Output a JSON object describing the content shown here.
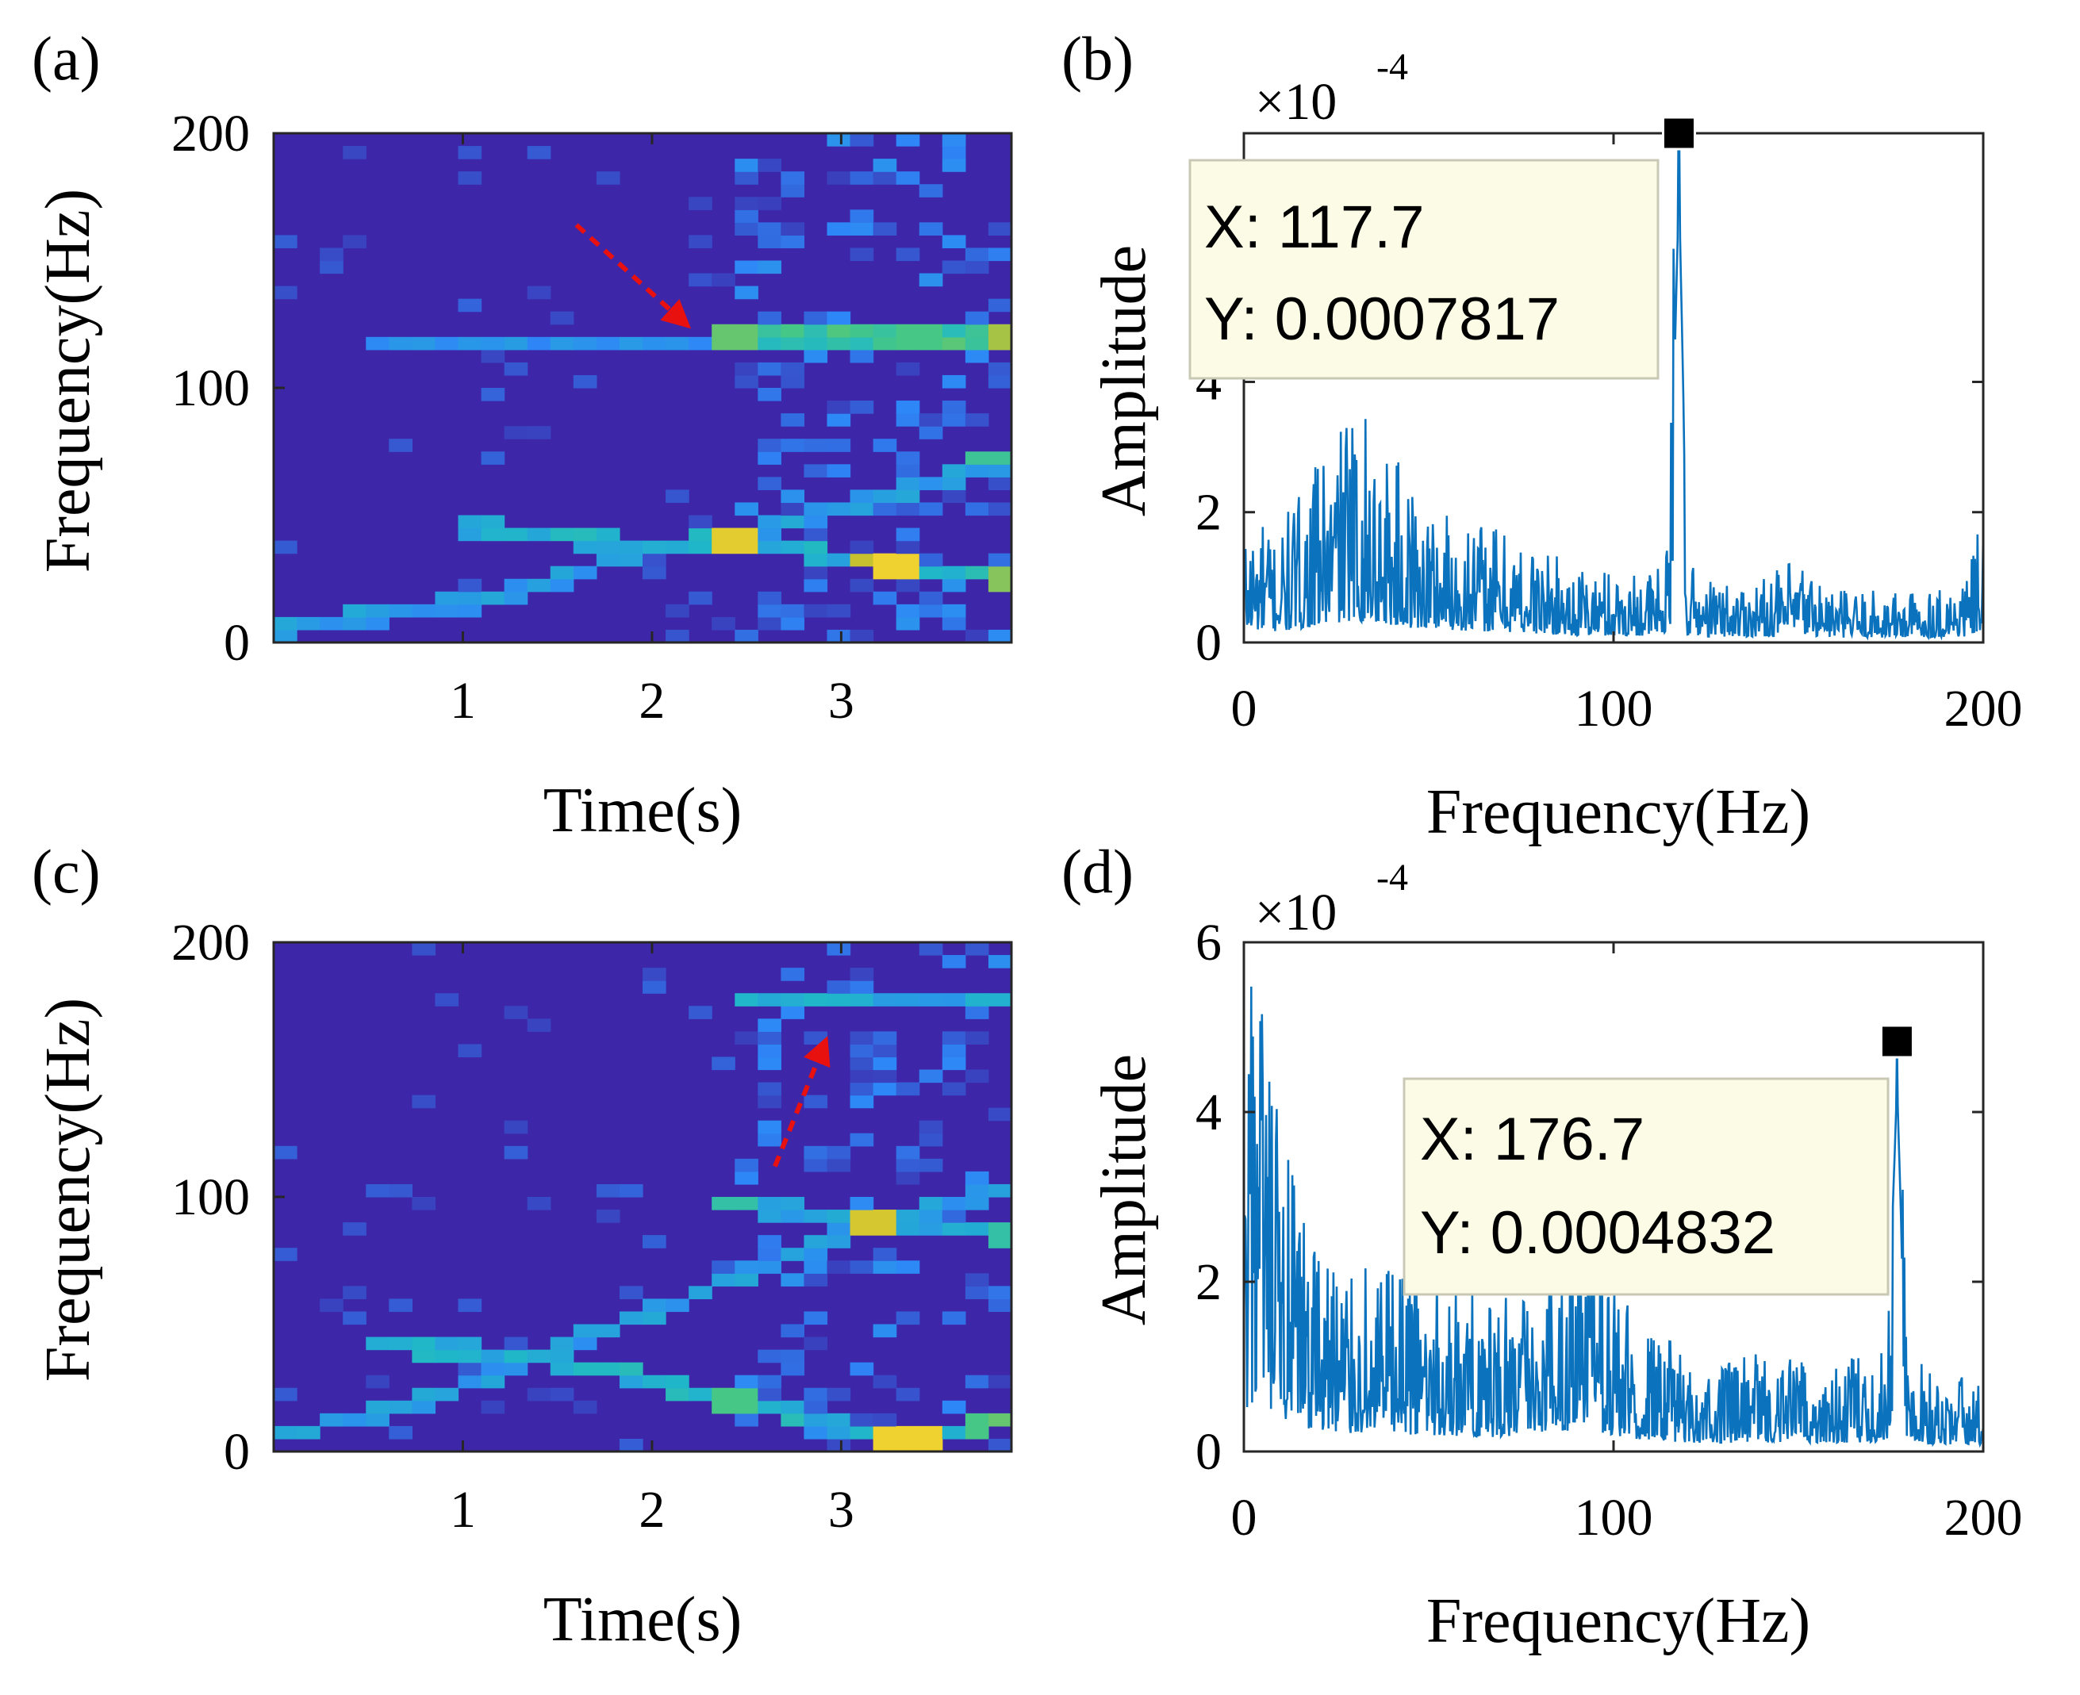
{
  "figure_title": "",
  "chart_data": [
    {
      "panel": "(a)",
      "type": "heatmap",
      "title": "",
      "xlabel": "Time(s)",
      "ylabel": "Frequency(Hz)",
      "xlim": [
        0,
        3.9
      ],
      "ylim": [
        0,
        200
      ],
      "xticks": [
        1,
        2,
        3
      ],
      "yticks": [
        0,
        100,
        200
      ],
      "time_bins": 32,
      "freq_bins": 40,
      "tracks": [
        {
          "name": "rising chirp",
          "points": [
            [
              0,
              5
            ],
            [
              1,
              15
            ],
            [
              2,
              36
            ],
            [
              2.5,
              42
            ],
            [
              3,
              52
            ],
            [
              3.9,
              72
            ]
          ],
          "intensity": 0.3
        },
        {
          "name": "falling branch",
          "points": [
            [
              1,
              46
            ],
            [
              2,
              38
            ],
            [
              2.4,
              40
            ],
            [
              3,
              33
            ],
            [
              3.3,
              29
            ],
            [
              3.9,
              25
            ]
          ],
          "intensity": 0.4
        },
        {
          "name": "~118 Hz fault line",
          "points": [
            [
              0.5,
              118
            ],
            [
              2.3,
              118
            ],
            [
              2.5,
              120
            ],
            [
              3.9,
              120
            ]
          ],
          "intensity": 0.25
        },
        {
          "name": "bright 117 Hz segment",
          "points": [
            [
              2.45,
              120
            ],
            [
              3.9,
              120
            ]
          ],
          "intensity": 0.55
        }
      ],
      "hotspots": [
        [
          2.45,
          40,
          0.9
        ],
        [
          2.5,
          38,
          0.85
        ],
        [
          3.1,
          33,
          0.8
        ],
        [
          3.3,
          30,
          0.95
        ],
        [
          3.9,
          119,
          0.75
        ],
        [
          3.9,
          25,
          0.7
        ],
        [
          3.8,
          72,
          0.55
        ],
        [
          3.4,
          120,
          0.6
        ],
        [
          2.45,
          120,
          0.65
        ]
      ],
      "colormap": [
        "#3e26a8",
        "#2e87f7",
        "#20b8c8",
        "#46c785",
        "#c7c130",
        "#fcd72f"
      ],
      "arrow": {
        "from": [
          1.6,
          164
        ],
        "to": [
          2.15,
          127
        ],
        "color": "#e8110f"
      }
    },
    {
      "panel": "(b)",
      "type": "line",
      "title": "",
      "xlabel": "Frequency(Hz)",
      "ylabel": "Amplitude",
      "xlim": [
        0,
        200
      ],
      "ylim": [
        0,
        0.0007817
      ],
      "xticks": [
        0,
        100,
        200
      ],
      "yticks": [
        0,
        2,
        4
      ],
      "ytick_labels": [
        "0",
        "2",
        "4"
      ],
      "scale_exponent": "×10",
      "scale_power": "-4",
      "line_color": "#0b72bd",
      "series": [
        {
          "name": "amplitude spectrum",
          "envelope": [
            [
              0,
              0.00012
            ],
            [
              10,
              0.00011
            ],
            [
              20,
              0.00017
            ],
            [
              28,
              0.00022
            ],
            [
              35,
              0.00021
            ],
            [
              45,
              0.00015
            ],
            [
              60,
              0.00012
            ],
            [
              70,
              0.00011
            ],
            [
              80,
              9e-05
            ],
            [
              90,
              7e-05
            ],
            [
              100,
              7e-05
            ],
            [
              110,
              7e-05
            ],
            [
              115,
              9e-05
            ],
            [
              117.7,
              0.0007817
            ],
            [
              120,
              8e-05
            ],
            [
              125,
              6e-05
            ],
            [
              140,
              6e-05
            ],
            [
              150,
              8e-05
            ],
            [
              160,
              5e-05
            ],
            [
              180,
              5e-05
            ],
            [
              195,
              6e-05
            ],
            [
              200,
              0.00012
            ]
          ]
        }
      ],
      "datatip": {
        "x": 117.7,
        "y": 0.0007817,
        "x_text": "X: 117.7",
        "y_text": "Y: 0.0007817"
      }
    },
    {
      "panel": "(c)",
      "type": "heatmap",
      "title": "",
      "xlabel": "Time(s)",
      "ylabel": "Frequency(Hz)",
      "xlim": [
        0,
        3.9
      ],
      "ylim": [
        0,
        200
      ],
      "xticks": [
        1,
        2,
        3
      ],
      "yticks": [
        0,
        100,
        200
      ],
      "time_bins": 32,
      "freq_bins": 40,
      "tracks": [
        {
          "name": "rising chirp",
          "points": [
            [
              0,
              5
            ],
            [
              1,
              25
            ],
            [
              2,
              55
            ],
            [
              2.5,
              70
            ],
            [
              3,
              85
            ],
            [
              3.9,
              105
            ]
          ],
          "intensity": 0.3
        },
        {
          "name": "falling branch",
          "points": [
            [
              0.5,
              43
            ],
            [
              1.5,
              36
            ],
            [
              2.5,
              20
            ],
            [
              3,
              10
            ],
            [
              3.4,
              5
            ],
            [
              3.9,
              12
            ]
          ],
          "intensity": 0.4
        },
        {
          "name": "~177 Hz fault line",
          "points": [
            [
              2.4,
              178
            ],
            [
              3.9,
              177
            ]
          ],
          "intensity": 0.35
        },
        {
          "name": "~97 Hz line",
          "points": [
            [
              2.4,
              97
            ],
            [
              3.2,
              90
            ],
            [
              3.9,
              85
            ]
          ],
          "intensity": 0.35
        }
      ],
      "hotspots": [
        [
          3.3,
          5,
          0.95
        ],
        [
          3.4,
          4,
          0.95
        ],
        [
          3.2,
          90,
          0.85
        ],
        [
          3.9,
          12,
          0.65
        ],
        [
          2.45,
          20,
          0.6
        ],
        [
          3.7,
          10,
          0.6
        ],
        [
          3.9,
          85,
          0.5
        ],
        [
          2.45,
          98,
          0.5
        ]
      ],
      "colormap": [
        "#3e26a8",
        "#2e87f7",
        "#20b8c8",
        "#46c785",
        "#c7c130",
        "#fcd72f"
      ],
      "arrow": {
        "from": [
          2.65,
          112
        ],
        "to": [
          2.9,
          158
        ],
        "color": "#e8110f"
      }
    },
    {
      "panel": "(d)",
      "type": "line",
      "title": "",
      "xlabel": "Frequency(Hz)",
      "ylabel": "Amplitude",
      "xlim": [
        0,
        200
      ],
      "ylim": [
        0,
        0.0006
      ],
      "xticks": [
        0,
        100,
        200
      ],
      "yticks": [
        0,
        2,
        4,
        6
      ],
      "ytick_labels": [
        "0",
        "2",
        "4",
        "6"
      ],
      "scale_exponent": "×10",
      "scale_power": "-4",
      "line_color": "#0b72bd",
      "series": [
        {
          "name": "amplitude spectrum",
          "envelope": [
            [
              0,
              0.00019
            ],
            [
              3,
              0.00043
            ],
            [
              6,
              0.00028
            ],
            [
              15,
              0.00018
            ],
            [
              30,
              0.00014
            ],
            [
              50,
              0.00013
            ],
            [
              70,
              0.00011
            ],
            [
              85,
              0.00016
            ],
            [
              95,
              0.00016
            ],
            [
              105,
              0.0001
            ],
            [
              120,
              7e-05
            ],
            [
              140,
              7e-05
            ],
            [
              160,
              7e-05
            ],
            [
              170,
              7e-05
            ],
            [
              174,
              0.0001
            ],
            [
              176.7,
              0.0004832
            ],
            [
              179,
              0.0001
            ],
            [
              185,
              6e-05
            ],
            [
              200,
              5e-05
            ]
          ]
        }
      ],
      "datatip": {
        "x": 176.7,
        "y": 0.0004832,
        "x_text": "X: 176.7",
        "y_text": "Y: 0.0004832"
      }
    }
  ]
}
